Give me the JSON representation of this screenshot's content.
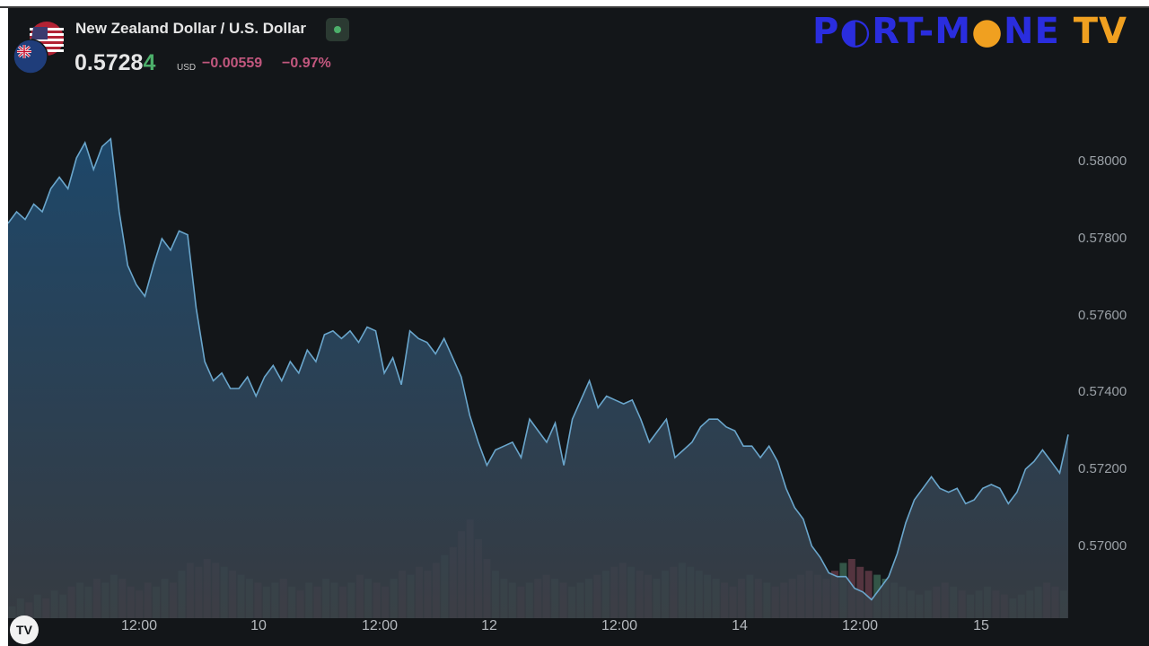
{
  "header": {
    "title": "New Zealand Dollar / U.S. Dollar",
    "price_main": "0.5728",
    "price_last": "4",
    "currency": "USD",
    "change": "−0.00559",
    "change_pct": "−0.97%"
  },
  "brand": {
    "part1": "P",
    "o_char": "●",
    "part2": "RT-M",
    "part3": "NE",
    "part4": "TV"
  },
  "footer": {
    "logo": "TV"
  },
  "colors": {
    "background": "#131619",
    "line": "#6aa6cc",
    "fill_top": "#1e4a6e",
    "fill_bottom": "#3a3f46",
    "vol_up": "#4f8a6e",
    "vol_down": "#8a4f5e",
    "up": "#4caf6a",
    "down": "#c2577e"
  },
  "chart_data": {
    "type": "area",
    "title": "New Zealand Dollar / U.S. Dollar",
    "ylim": [
      0.5684,
      0.5812
    ],
    "yticks": [
      "0.58000",
      "0.57800",
      "0.57600",
      "0.57400",
      "0.57200",
      "0.57000"
    ],
    "ytick_values": [
      0.58,
      0.578,
      0.576,
      0.574,
      0.572,
      0.57
    ],
    "xticks": [
      "12:00",
      "10",
      "12:00",
      "12",
      "12:00",
      "14",
      "12:00",
      "15"
    ],
    "grid": false,
    "series": [
      {
        "values": [
          0.5784,
          0.5787,
          0.5785,
          0.5789,
          0.5787,
          0.5793,
          0.5796,
          0.5793,
          0.5801,
          0.5805,
          0.5798,
          0.5804,
          0.5806,
          0.5787,
          0.5773,
          0.5768,
          0.5765,
          0.5773,
          0.578,
          0.5777,
          0.5782,
          0.5781,
          0.5762,
          0.5748,
          0.5743,
          0.5745,
          0.5741,
          0.5741,
          0.5744,
          0.5739,
          0.5744,
          0.5747,
          0.5743,
          0.5748,
          0.5745,
          0.5751,
          0.5748,
          0.5755,
          0.5756,
          0.5754,
          0.5756,
          0.5753,
          0.5757,
          0.5756,
          0.5745,
          0.5749,
          0.5742,
          0.5756,
          0.5754,
          0.5753,
          0.575,
          0.5754,
          0.5749,
          0.5744,
          0.5734,
          0.5727,
          0.5721,
          0.5725,
          0.5726,
          0.5727,
          0.5723,
          0.5733,
          0.573,
          0.5727,
          0.5732,
          0.5721,
          0.5733,
          0.5738,
          0.5743,
          0.5736,
          0.5739,
          0.5738,
          0.5737,
          0.5738,
          0.5733,
          0.5727,
          0.573,
          0.5733,
          0.5723,
          0.5725,
          0.5727,
          0.5731,
          0.5733,
          0.5733,
          0.5731,
          0.573,
          0.5726,
          0.5726,
          0.5723,
          0.5726,
          0.5722,
          0.5715,
          0.571,
          0.5707,
          0.57,
          0.5697,
          0.5693,
          0.5692,
          0.5692,
          0.5689,
          0.5688,
          0.5686,
          0.5689,
          0.5692,
          0.5698,
          0.5706,
          0.5712,
          0.5715,
          0.5718,
          0.5715,
          0.5714,
          0.5715,
          0.5711,
          0.5712,
          0.5715,
          0.5716,
          0.5715,
          0.5711,
          0.5714,
          0.572,
          0.5722,
          0.5725,
          0.5722,
          0.5719,
          0.5729
        ]
      }
    ],
    "volume": [
      3,
      5,
      4,
      6,
      5,
      7,
      6,
      8,
      9,
      8,
      10,
      9,
      11,
      10,
      8,
      7,
      9,
      8,
      10,
      9,
      12,
      14,
      13,
      15,
      14,
      13,
      12,
      11,
      10,
      9,
      8,
      9,
      10,
      8,
      7,
      9,
      8,
      10,
      9,
      8,
      9,
      11,
      10,
      9,
      8,
      10,
      12,
      11,
      13,
      12,
      14,
      16,
      18,
      22,
      25,
      20,
      15,
      12,
      10,
      9,
      8,
      9,
      10,
      11,
      10,
      9,
      8,
      9,
      10,
      11,
      12,
      13,
      14,
      13,
      12,
      11,
      10,
      12,
      13,
      14,
      13,
      12,
      11,
      10,
      9,
      8,
      10,
      11,
      10,
      9,
      8,
      9,
      10,
      11,
      12,
      11,
      10,
      12,
      14,
      15,
      13,
      12,
      11,
      10,
      9,
      8,
      7,
      6,
      7,
      8,
      9,
      8,
      7,
      6,
      7,
      8,
      7,
      6,
      5,
      6,
      7,
      8,
      9,
      8,
      7
    ]
  }
}
